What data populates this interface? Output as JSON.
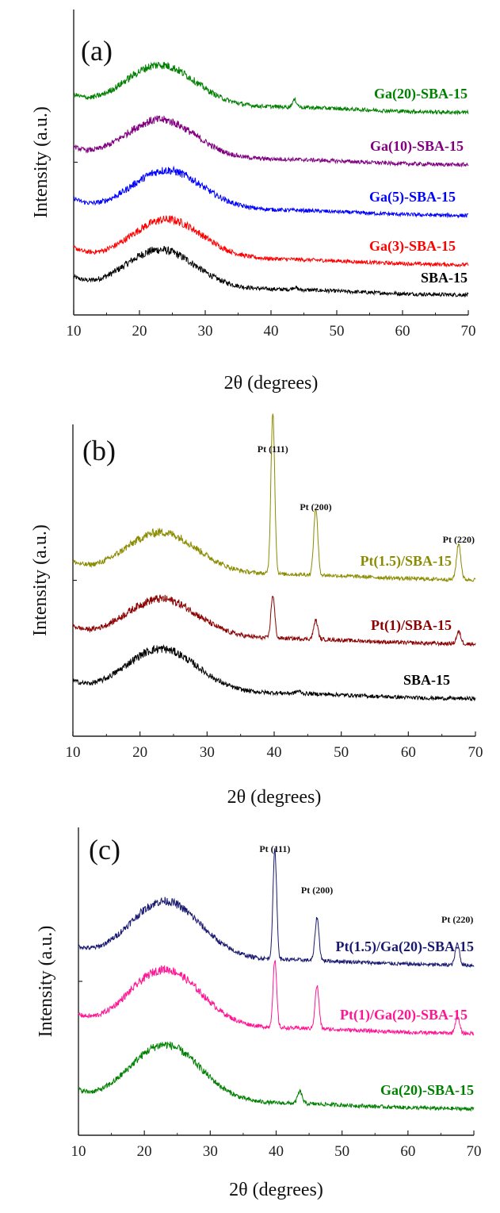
{
  "chart_data": [
    {
      "type": "line",
      "panel_label": "(a)",
      "xlabel": "2θ (degrees)",
      "ylabel": "Intensity (a.u.)",
      "xlim": [
        10,
        70
      ],
      "xticks": [
        10,
        20,
        30,
        40,
        50,
        60,
        70
      ],
      "grid": false,
      "series": [
        {
          "name": "SBA-15",
          "color": "#000000",
          "offset": 0.0,
          "hump": 0.9,
          "center": 23,
          "ptPeaks": [],
          "gaPeak": 0.05
        },
        {
          "name": "Ga(3)-SBA-15",
          "color": "#ff0000",
          "offset": 1.2,
          "hump": 0.9,
          "center": 24,
          "ptPeaks": [],
          "gaPeak": 0.0
        },
        {
          "name": "Ga(5)-SBA-15",
          "color": "#0000ff",
          "offset": 2.1,
          "hump": 0.9,
          "center": 24,
          "ptPeaks": [],
          "gaPeak": 0.0
        },
        {
          "name": "Ga(10)-SBA-15",
          "color": "#800080",
          "offset": 2.9,
          "hump": 0.9,
          "center": 23,
          "ptPeaks": [],
          "gaPeak": 0.0
        },
        {
          "name": "Ga(20)-SBA-15",
          "color": "#008000",
          "offset": 3.8,
          "hump": 0.95,
          "center": 23,
          "ptPeaks": [],
          "gaPeak": 0.15
        }
      ],
      "annotations": []
    },
    {
      "type": "line",
      "panel_label": "(b)",
      "xlabel": "2θ (degrees)",
      "ylabel": "Intensity (a.u.)",
      "xlim": [
        10,
        70
      ],
      "xticks": [
        10,
        20,
        30,
        40,
        50,
        60,
        70
      ],
      "grid": false,
      "series": [
        {
          "name": "SBA-15",
          "color": "#000000",
          "offset": 0.0,
          "hump": 1.0,
          "center": 23,
          "ptPeaks": [],
          "gaPeak": 0.05
        },
        {
          "name": "Pt(1)/SBA-15",
          "color": "#8b0000",
          "offset": 0.9,
          "hump": 0.9,
          "center": 23,
          "ptPeaks": [
            0.9,
            0.4,
            0.25
          ],
          "gaPeak": 0.0
        },
        {
          "name": "Pt(1.5)/SBA-15",
          "color": "#8b8b00",
          "offset": 1.8,
          "hump": 0.95,
          "center": 23,
          "ptPeaks": [
            3.4,
            1.4,
            0.75
          ],
          "gaPeak": 0.0
        }
      ],
      "annotations": [
        {
          "text": "Pt (111)",
          "x": 39.8
        },
        {
          "text": "Pt (200)",
          "x": 46.2
        },
        {
          "text": "Pt (220)",
          "x": 67.5
        }
      ]
    },
    {
      "type": "line",
      "panel_label": "(c)",
      "xlabel": "2θ (degrees)",
      "ylabel": "Intensity (a.u.)",
      "xlim": [
        10,
        70
      ],
      "xticks": [
        10,
        20,
        30,
        40,
        50,
        60,
        70
      ],
      "grid": false,
      "series": [
        {
          "name": "Ga(20)-SBA-15",
          "color": "#008000",
          "offset": 0.0,
          "hump": 1.3,
          "center": 23,
          "ptPeaks": [],
          "gaPeak": 0.25
        },
        {
          "name": "Pt(1)/Ga(20)-SBA-15",
          "color": "#ff1493",
          "offset": 1.1,
          "hump": 1.3,
          "center": 23,
          "ptPeaks": [
            1.4,
            0.9,
            0.35
          ],
          "gaPeak": 0.0
        },
        {
          "name": "Pt(1.5)/Ga(20)-SBA-15",
          "color": "#191970",
          "offset": 2.2,
          "hump": 1.3,
          "center": 23,
          "ptPeaks": [
            2.3,
            0.9,
            0.45
          ],
          "gaPeak": 0.0
        }
      ],
      "annotations": [
        {
          "text": "Pt (111)",
          "x": 39.8
        },
        {
          "text": "Pt (200)",
          "x": 46.2
        },
        {
          "text": "Pt (220)",
          "x": 67.5
        }
      ]
    }
  ]
}
